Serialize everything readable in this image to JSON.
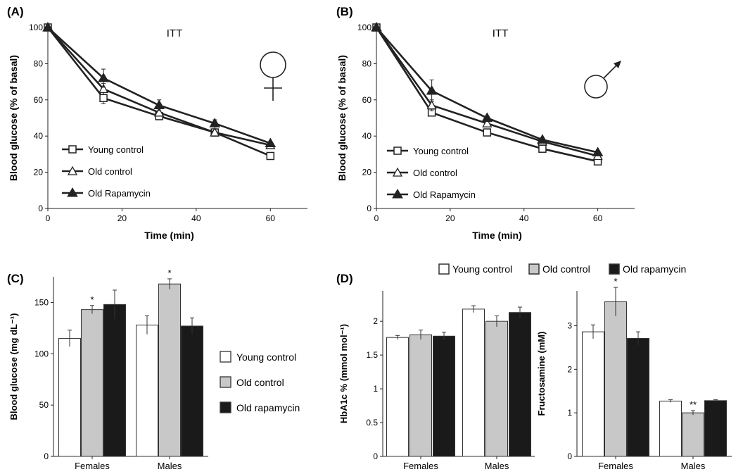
{
  "colors": {
    "axis": "#222222",
    "line": "#222222",
    "young": "#ffffff",
    "old": "#c8c8c8",
    "rapa": "#1a1a1a"
  },
  "chart_data": [
    {
      "id": "A",
      "panel_label": "(A)",
      "type": "line",
      "title": "ITT",
      "xlabel": "Time (min)",
      "ylabel": "Blood glucose (% of basal)",
      "xlim": [
        0,
        70
      ],
      "ylim": [
        0,
        100
      ],
      "xticks": [
        "0",
        "20",
        "40",
        "60"
      ],
      "yticks": [
        "0",
        "20",
        "40",
        "60",
        "80",
        "100"
      ],
      "x": [
        0,
        15,
        30,
        45,
        60
      ],
      "symbol": "female-symbol",
      "series": [
        {
          "name": "Young control",
          "marker": "square",
          "values": [
            100,
            61,
            51,
            42,
            29
          ],
          "err": [
            0,
            3,
            2,
            2,
            0
          ]
        },
        {
          "name": "Old control",
          "marker": "triangle-open",
          "values": [
            100,
            66,
            53,
            42,
            35
          ],
          "err": [
            0,
            3,
            2,
            2,
            0
          ]
        },
        {
          "name": "Old Rapamycin",
          "marker": "triangle-filled",
          "values": [
            100,
            72,
            57,
            47,
            36
          ],
          "err": [
            0,
            5,
            3,
            2,
            0
          ]
        }
      ]
    },
    {
      "id": "B",
      "panel_label": "(B)",
      "type": "line",
      "title": "ITT",
      "xlabel": "Time (min)",
      "ylabel": "Blood glucose (% of basal)",
      "xlim": [
        0,
        70
      ],
      "ylim": [
        0,
        100
      ],
      "xticks": [
        "0",
        "20",
        "40",
        "60"
      ],
      "yticks": [
        "0",
        "20",
        "40",
        "60",
        "80",
        "100"
      ],
      "x": [
        0,
        15,
        30,
        45,
        60
      ],
      "symbol": "male-symbol",
      "series": [
        {
          "name": "Young control",
          "marker": "square",
          "values": [
            100,
            53,
            42,
            33,
            26
          ],
          "err": [
            0,
            2,
            1,
            1,
            1
          ]
        },
        {
          "name": "Old control",
          "marker": "triangle-open",
          "values": [
            100,
            57,
            47,
            37,
            29
          ],
          "err": [
            0,
            3,
            1,
            1,
            1
          ]
        },
        {
          "name": "Old Rapamycin",
          "marker": "triangle-filled",
          "values": [
            100,
            65,
            50,
            38,
            31
          ],
          "err": [
            0,
            6,
            1,
            1,
            1
          ]
        }
      ]
    },
    {
      "id": "C",
      "panel_label": "(C)",
      "type": "bar",
      "categories": [
        "Females",
        "Males"
      ],
      "ylabel": "Blood glucose (mg dL⁻¹)",
      "ylim": [
        0,
        175
      ],
      "yticks": [
        "0",
        "50",
        "100",
        "150"
      ],
      "series": [
        {
          "name": "Young control",
          "values": [
            115,
            128
          ],
          "err": [
            8,
            9
          ],
          "stars": [
            "",
            ""
          ]
        },
        {
          "name": "Old control",
          "values": [
            143,
            168
          ],
          "err": [
            4,
            5
          ],
          "stars": [
            "*",
            "*"
          ]
        },
        {
          "name": "Old rapamycin",
          "values": [
            148,
            127
          ],
          "err": [
            14,
            8
          ],
          "stars": [
            "",
            ""
          ]
        }
      ]
    },
    {
      "id": "D1",
      "panel_label": "(D)",
      "type": "bar",
      "categories": [
        "Females",
        "Males"
      ],
      "ylabel": "HbA1c % (mmol mol⁻¹)",
      "ylim": [
        0,
        2.45
      ],
      "yticks": [
        "0",
        "0.5",
        "1",
        "1.5",
        "2"
      ],
      "series": [
        {
          "name": "Young control",
          "values": [
            1.76,
            2.18
          ],
          "err": [
            0.03,
            0.05
          ],
          "stars": [
            "",
            ""
          ]
        },
        {
          "name": "Old control",
          "values": [
            1.8,
            2.0
          ],
          "err": [
            0.07,
            0.08
          ],
          "stars": [
            "",
            ""
          ]
        },
        {
          "name": "Old rapamycin",
          "values": [
            1.78,
            2.13
          ],
          "err": [
            0.06,
            0.08
          ],
          "stars": [
            "",
            ""
          ]
        }
      ]
    },
    {
      "id": "D2",
      "panel_label": "",
      "type": "bar",
      "categories": [
        "Females",
        "Males"
      ],
      "ylabel": "Fructosamine (mM)",
      "ylim": [
        0,
        3.8
      ],
      "yticks": [
        "0",
        "1",
        "2",
        "3"
      ],
      "series": [
        {
          "name": "Young control",
          "values": [
            2.86,
            1.27
          ],
          "err": [
            0.16,
            0.03
          ],
          "stars": [
            "",
            ""
          ]
        },
        {
          "name": "Old control",
          "values": [
            3.55,
            1.0
          ],
          "err": [
            0.33,
            0.05
          ],
          "stars": [
            "*",
            "**"
          ]
        },
        {
          "name": "Old rapamycin",
          "values": [
            2.71,
            1.28
          ],
          "err": [
            0.15,
            0.02
          ],
          "stars": [
            "",
            ""
          ]
        }
      ]
    }
  ],
  "legends": {
    "C": [
      "Young control",
      "Old control",
      "Old rapamycin"
    ],
    "D": [
      "Young control",
      "Old control",
      "Old rapamycin"
    ]
  }
}
